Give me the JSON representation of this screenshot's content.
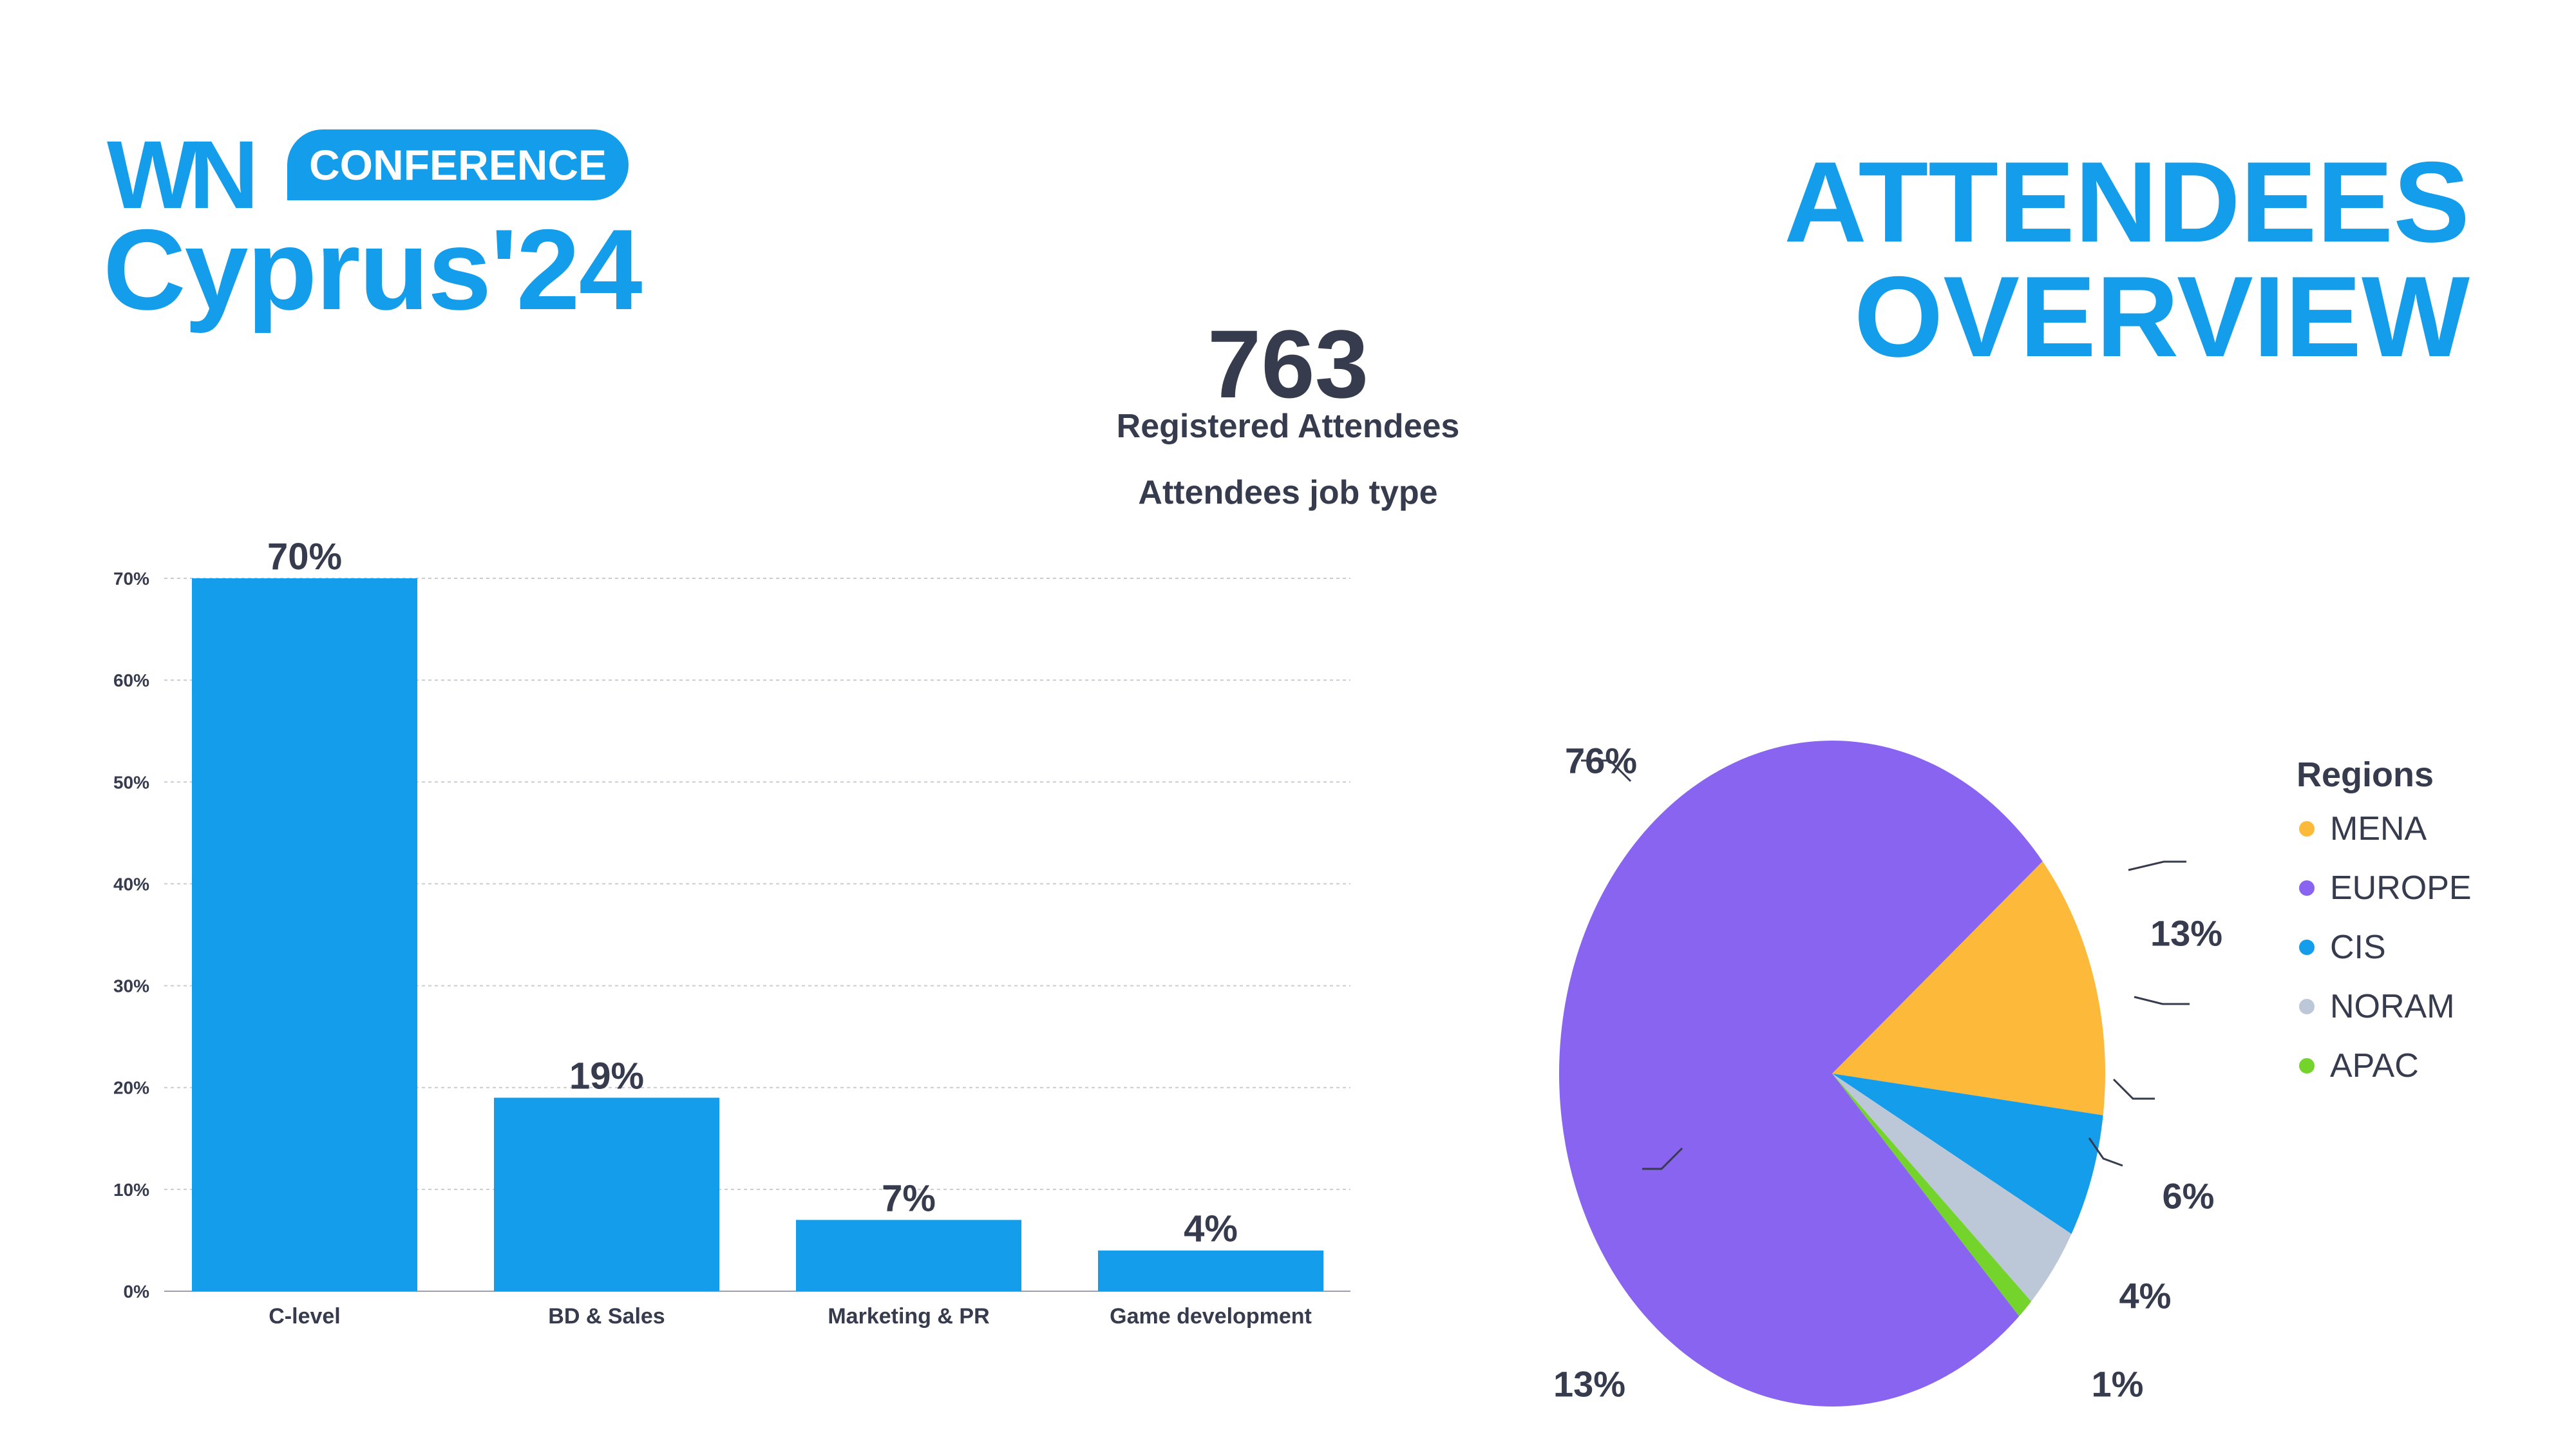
{
  "logo": {
    "brand": "WN",
    "badge": "CONFERENCE",
    "event": "Cyprus'24"
  },
  "header": {
    "title": "ATTENDEES OVERVIEW"
  },
  "summary": {
    "total": "763",
    "label": "Registered Attendees"
  },
  "colors": {
    "accent": "#139deb",
    "text": "#363b4d"
  },
  "chart_data": [
    {
      "type": "bar",
      "title": "Attendees job type",
      "categories": [
        "C-level",
        "BD & Sales",
        "Marketing & PR",
        "Game development"
      ],
      "values": [
        70,
        19,
        7,
        4
      ],
      "value_labels": [
        "70%",
        "19%",
        "7%",
        "4%"
      ],
      "yticks": [
        "0%",
        "10%",
        "20%",
        "30%",
        "40%",
        "50%",
        "60%",
        "70%"
      ],
      "ylim": [
        0,
        70
      ],
      "grid": true,
      "color": "#139deb"
    },
    {
      "type": "pie",
      "legend_title": "Regions",
      "legend_placement": "right",
      "slices": [
        {
          "name": "MENA",
          "value": 13,
          "label": "13%",
          "color": "#fdb93a"
        },
        {
          "name": "CIS",
          "value": 6,
          "label": "6%",
          "color": "#139deb"
        },
        {
          "name": "NORAM",
          "value": 4,
          "label": "4%",
          "color": "#bcc8d8"
        },
        {
          "name": "APAC",
          "value": 1,
          "label": "1%",
          "color": "#74d42b"
        },
        {
          "name": "EUROPE",
          "value": 76,
          "label": "76%",
          "color": "#8864f0"
        }
      ],
      "legend_order": [
        "MENA",
        "EUROPE",
        "CIS",
        "NORAM",
        "APAC"
      ],
      "extra_label": "13%"
    }
  ]
}
